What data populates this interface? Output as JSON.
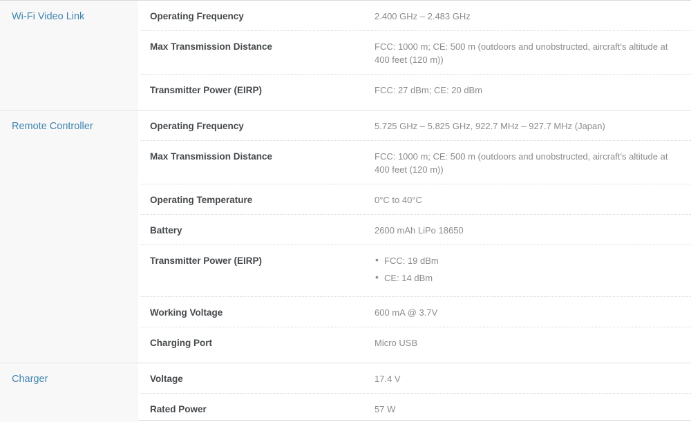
{
  "colors": {
    "section_title_blue": "#3f84ae",
    "row_label_dark": "#45494c",
    "value_gray": "#8b8b8b",
    "left_column_bg": "#f8f8f8",
    "solid_divider": "#e2e2e2",
    "dotted_divider": "#d8d8d8"
  },
  "table": {
    "sections": [
      {
        "title": "Wi-Fi Video Link",
        "rows": [
          {
            "label": "Operating Frequency",
            "value": "2.400 GHz – 2.483 GHz"
          },
          {
            "label": "Max Transmission Distance",
            "value": "FCC: 1000 m; CE: 500 m (outdoors and unobstructed, aircraft's altitude at 400 feet (120 m))"
          },
          {
            "label": "Transmitter Power (EIRP)",
            "value": "FCC: 27 dBm; CE: 20 dBm"
          }
        ]
      },
      {
        "title": "Remote Controller",
        "rows": [
          {
            "label": "Operating Frequency",
            "value": "5.725 GHz – 5.825 GHz, 922.7 MHz – 927.7 MHz (Japan)"
          },
          {
            "label": "Max Transmission Distance",
            "value": "FCC: 1000 m; CE: 500 m (outdoors and unobstructed, aircraft's altitude at 400 feet (120 m))"
          },
          {
            "label": "Operating Temperature",
            "value": "0°C to 40°C"
          },
          {
            "label": "Battery",
            "value": "2600 mAh LiPo 18650"
          },
          {
            "label": "Transmitter Power (EIRP)",
            "bullets": [
              "FCC: 19 dBm",
              "CE: 14 dBm"
            ]
          },
          {
            "label": "Working Voltage",
            "value": "600 mA @ 3.7V"
          },
          {
            "label": "Charging Port",
            "value": "Micro USB"
          }
        ]
      },
      {
        "title": "Charger",
        "rows": [
          {
            "label": "Voltage",
            "value": "17.4 V"
          },
          {
            "label": "Rated Power",
            "value": "57 W"
          }
        ]
      }
    ]
  }
}
